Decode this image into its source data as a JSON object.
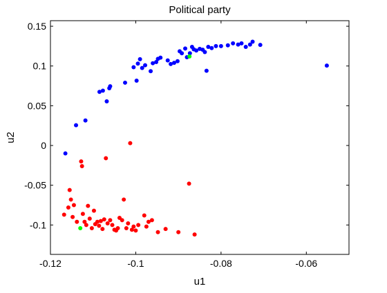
{
  "chart_data": {
    "type": "scatter",
    "title": "Political party",
    "xlabel": "u1",
    "ylabel": "u2",
    "xlim": [
      -0.12,
      -0.05
    ],
    "ylim": [
      -0.137,
      0.157
    ],
    "xticks": [
      -0.12,
      -0.1,
      -0.08,
      -0.06
    ],
    "xtick_labels": [
      "-0.12",
      "-0.1",
      "-0.08",
      "-0.06"
    ],
    "yticks": [
      -0.1,
      -0.05,
      0,
      0.05,
      0.1,
      0.15
    ],
    "ytick_labels": [
      "-0.1",
      "-0.05",
      "0",
      "0.05",
      "0.1",
      "0.15"
    ],
    "grid": false,
    "series": [
      {
        "color": "#0000ff",
        "points": [
          [
            -0.1165,
            -0.01
          ],
          [
            -0.114,
            0.0255
          ],
          [
            -0.1118,
            0.0315
          ],
          [
            -0.1085,
            0.0675
          ],
          [
            -0.1077,
            0.069
          ],
          [
            -0.1068,
            0.0555
          ],
          [
            -0.1062,
            0.072
          ],
          [
            -0.106,
            0.0745
          ],
          [
            -0.1025,
            0.079
          ],
          [
            -0.1005,
            0.0985
          ],
          [
            -0.0998,
            0.0815
          ],
          [
            -0.0995,
            0.103
          ],
          [
            -0.099,
            0.1085
          ],
          [
            -0.0985,
            0.0975
          ],
          [
            -0.0978,
            0.101
          ],
          [
            -0.0965,
            0.0935
          ],
          [
            -0.096,
            0.1035
          ],
          [
            -0.0952,
            0.105
          ],
          [
            -0.0948,
            0.109
          ],
          [
            -0.0942,
            0.1105
          ],
          [
            -0.0925,
            0.107
          ],
          [
            -0.0918,
            0.1025
          ],
          [
            -0.091,
            0.104
          ],
          [
            -0.0902,
            0.106
          ],
          [
            -0.0897,
            0.1185
          ],
          [
            -0.0892,
            0.116
          ],
          [
            -0.0884,
            0.122
          ],
          [
            -0.088,
            0.111
          ],
          [
            -0.0873,
            0.116
          ],
          [
            -0.0868,
            0.124
          ],
          [
            -0.0864,
            0.121
          ],
          [
            -0.0858,
            0.1195
          ],
          [
            -0.085,
            0.1215
          ],
          [
            -0.0843,
            0.1205
          ],
          [
            -0.0838,
            0.1175
          ],
          [
            -0.0834,
            0.094
          ],
          [
            -0.083,
            0.124
          ],
          [
            -0.0822,
            0.1225
          ],
          [
            -0.0812,
            0.125
          ],
          [
            -0.08,
            0.125
          ],
          [
            -0.0784,
            0.126
          ],
          [
            -0.0772,
            0.1285
          ],
          [
            -0.076,
            0.127
          ],
          [
            -0.0752,
            0.1285
          ],
          [
            -0.0742,
            0.124
          ],
          [
            -0.0732,
            0.127
          ],
          [
            -0.0726,
            0.1305
          ],
          [
            -0.0708,
            0.1265
          ],
          [
            -0.0552,
            0.1005
          ]
        ]
      },
      {
        "color": "#ff0000",
        "points": [
          [
            -0.1168,
            -0.087
          ],
          [
            -0.1158,
            -0.078
          ],
          [
            -0.1155,
            -0.056
          ],
          [
            -0.1152,
            -0.068
          ],
          [
            -0.1148,
            -0.09
          ],
          [
            -0.1145,
            -0.075
          ],
          [
            -0.1138,
            -0.096
          ],
          [
            -0.1128,
            -0.02
          ],
          [
            -0.1126,
            -0.026
          ],
          [
            -0.1124,
            -0.086
          ],
          [
            -0.112,
            -0.096
          ],
          [
            -0.1116,
            -0.1
          ],
          [
            -0.1112,
            -0.076
          ],
          [
            -0.1108,
            -0.092
          ],
          [
            -0.1103,
            -0.104
          ],
          [
            -0.1098,
            -0.082
          ],
          [
            -0.1095,
            -0.099
          ],
          [
            -0.109,
            -0.096
          ],
          [
            -0.1086,
            -0.101
          ],
          [
            -0.1082,
            -0.095
          ],
          [
            -0.1078,
            -0.105
          ],
          [
            -0.1074,
            -0.093
          ],
          [
            -0.107,
            -0.016
          ],
          [
            -0.1066,
            -0.098
          ],
          [
            -0.106,
            -0.094
          ],
          [
            -0.1055,
            -0.1
          ],
          [
            -0.105,
            -0.106
          ],
          [
            -0.1046,
            -0.107
          ],
          [
            -0.1042,
            -0.104
          ],
          [
            -0.1038,
            -0.091
          ],
          [
            -0.1032,
            -0.094
          ],
          [
            -0.1028,
            -0.068
          ],
          [
            -0.1022,
            -0.104
          ],
          [
            -0.1018,
            -0.098
          ],
          [
            -0.1013,
            0.003
          ],
          [
            -0.1009,
            -0.106
          ],
          [
            -0.1005,
            -0.102
          ],
          [
            -0.1,
            -0.107
          ],
          [
            -0.0994,
            -0.1
          ],
          [
            -0.098,
            -0.088
          ],
          [
            -0.0975,
            -0.102
          ],
          [
            -0.097,
            -0.096
          ],
          [
            -0.0962,
            -0.094
          ],
          [
            -0.0948,
            -0.109
          ],
          [
            -0.093,
            -0.105
          ],
          [
            -0.09,
            -0.109
          ],
          [
            -0.0875,
            -0.048
          ],
          [
            -0.0862,
            -0.112
          ]
        ]
      },
      {
        "color": "#00ff00",
        "points": [
          [
            -0.113,
            -0.104
          ],
          [
            -0.0874,
            0.112
          ]
        ]
      }
    ]
  }
}
